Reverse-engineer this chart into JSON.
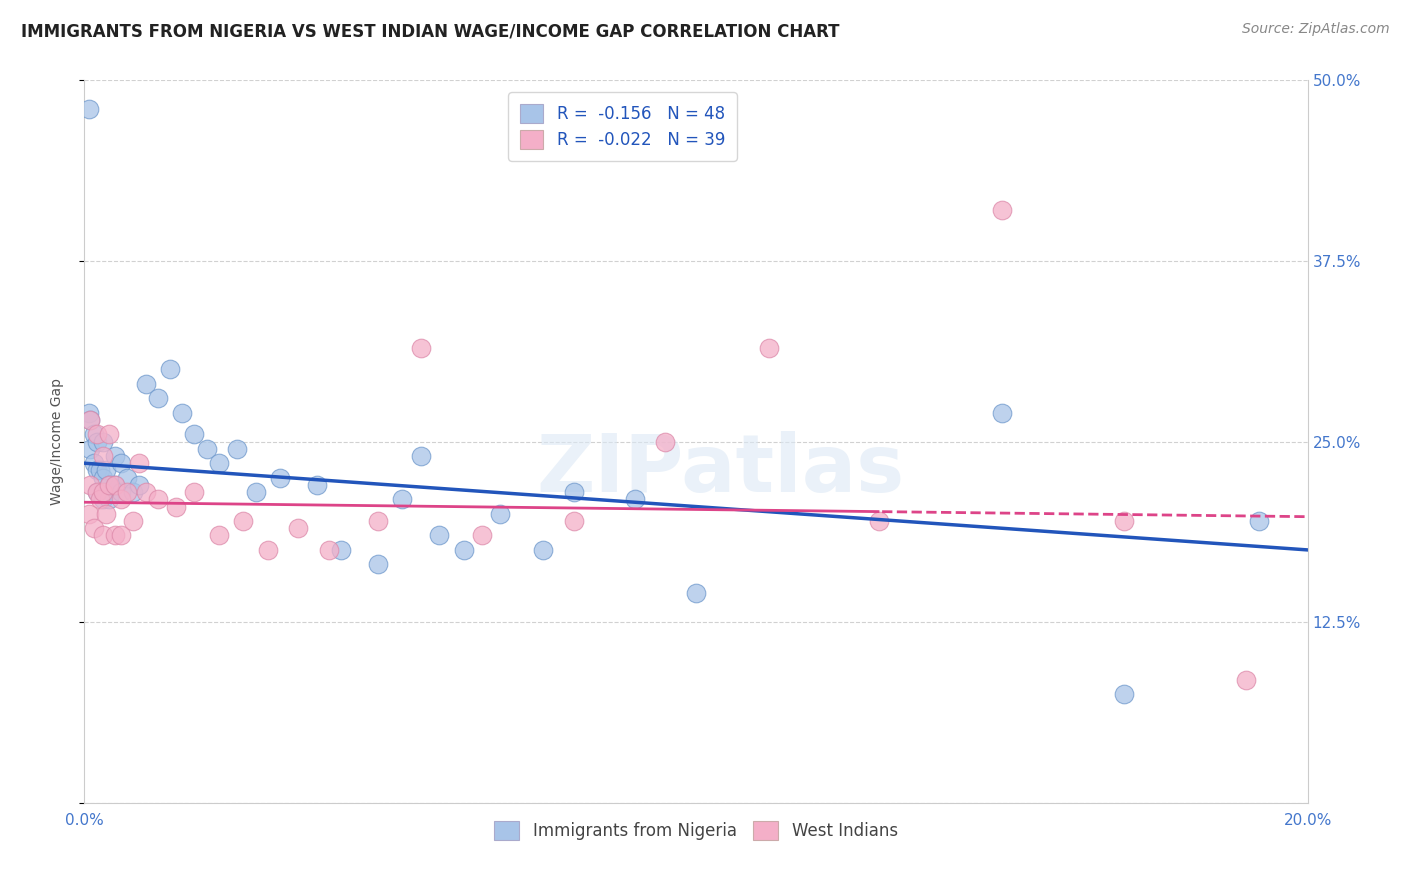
{
  "title": "IMMIGRANTS FROM NIGERIA VS WEST INDIAN WAGE/INCOME GAP CORRELATION CHART",
  "source": "Source: ZipAtlas.com",
  "ylabel": "Wage/Income Gap",
  "xlim": [
    0.0,
    0.2
  ],
  "ylim": [
    0.0,
    0.5
  ],
  "yticks": [
    0.0,
    0.125,
    0.25,
    0.375,
    0.5
  ],
  "ytick_labels_right": [
    "",
    "12.5%",
    "25.0%",
    "37.5%",
    "50.0%"
  ],
  "xticks": [
    0.0,
    0.05,
    0.1,
    0.15,
    0.2
  ],
  "xtick_labels": [
    "0.0%",
    "",
    "",
    "",
    "20.0%"
  ],
  "blue_R": -0.156,
  "blue_N": 48,
  "pink_R": -0.022,
  "pink_N": 39,
  "blue_color": "#a8c4e8",
  "pink_color": "#f4afc8",
  "blue_edge_color": "#7099cc",
  "pink_edge_color": "#dd8aaa",
  "blue_line_color": "#2255bb",
  "pink_line_color": "#dd4488",
  "legend_label_blue": "Immigrants from Nigeria",
  "legend_label_pink": "West Indians",
  "watermark": "ZIPatlas",
  "background_color": "#ffffff",
  "blue_x": [
    0.0008,
    0.0008,
    0.001,
    0.001,
    0.0015,
    0.0015,
    0.002,
    0.002,
    0.002,
    0.0025,
    0.003,
    0.003,
    0.003,
    0.0035,
    0.004,
    0.004,
    0.005,
    0.005,
    0.006,
    0.006,
    0.007,
    0.008,
    0.009,
    0.01,
    0.012,
    0.014,
    0.016,
    0.018,
    0.02,
    0.022,
    0.025,
    0.028,
    0.032,
    0.038,
    0.042,
    0.048,
    0.055,
    0.062,
    0.068,
    0.08,
    0.052,
    0.058,
    0.075,
    0.09,
    0.1,
    0.15,
    0.17,
    0.192
  ],
  "blue_y": [
    0.48,
    0.27,
    0.265,
    0.245,
    0.255,
    0.235,
    0.25,
    0.23,
    0.215,
    0.23,
    0.25,
    0.225,
    0.21,
    0.23,
    0.22,
    0.21,
    0.24,
    0.22,
    0.235,
    0.215,
    0.225,
    0.215,
    0.22,
    0.29,
    0.28,
    0.3,
    0.27,
    0.255,
    0.245,
    0.235,
    0.245,
    0.215,
    0.225,
    0.22,
    0.175,
    0.165,
    0.24,
    0.175,
    0.2,
    0.215,
    0.21,
    0.185,
    0.175,
    0.21,
    0.145,
    0.27,
    0.075,
    0.195
  ],
  "pink_x": [
    0.0008,
    0.001,
    0.001,
    0.0015,
    0.002,
    0.002,
    0.0025,
    0.003,
    0.003,
    0.003,
    0.0035,
    0.004,
    0.004,
    0.005,
    0.005,
    0.006,
    0.006,
    0.007,
    0.008,
    0.009,
    0.01,
    0.012,
    0.015,
    0.018,
    0.022,
    0.026,
    0.03,
    0.035,
    0.04,
    0.048,
    0.055,
    0.065,
    0.08,
    0.095,
    0.112,
    0.13,
    0.15,
    0.17,
    0.19
  ],
  "pink_y": [
    0.2,
    0.265,
    0.22,
    0.19,
    0.255,
    0.215,
    0.21,
    0.185,
    0.24,
    0.215,
    0.2,
    0.255,
    0.22,
    0.185,
    0.22,
    0.21,
    0.185,
    0.215,
    0.195,
    0.235,
    0.215,
    0.21,
    0.205,
    0.215,
    0.185,
    0.195,
    0.175,
    0.19,
    0.175,
    0.195,
    0.315,
    0.185,
    0.195,
    0.25,
    0.315,
    0.195,
    0.41,
    0.195,
    0.085
  ],
  "title_fontsize": 12,
  "axis_label_fontsize": 10,
  "tick_fontsize": 11,
  "legend_fontsize": 12,
  "source_fontsize": 10
}
